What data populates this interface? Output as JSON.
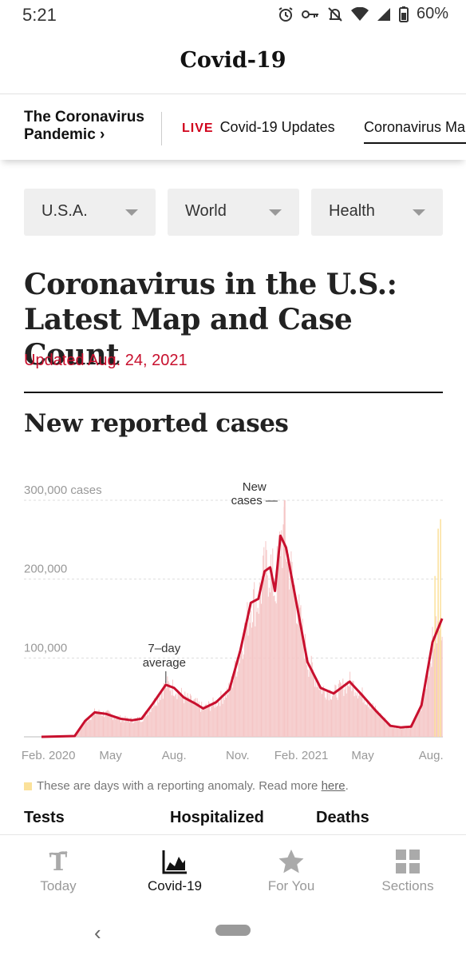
{
  "status": {
    "time": "5:21",
    "battery": "60%"
  },
  "appbar": {
    "title": "Covid-19"
  },
  "subnav": {
    "pandemic_label": "The Coronavirus Pandemic ›",
    "live_badge": "LIVE",
    "live_label": "Covid-19 Updates",
    "maps_label": "Coronavirus Maps"
  },
  "sections": [
    {
      "label": "U.S.A."
    },
    {
      "label": "World"
    },
    {
      "label": "Health"
    }
  ],
  "article": {
    "headline": "Coronavirus in the U.S.: Latest Map and Case Count",
    "updated": "Updated Aug. 24, 2021",
    "chart_heading": "New reported cases"
  },
  "chart_data": {
    "type": "area",
    "x_tick_labels": [
      "Feb. 2020",
      "May",
      "Aug.",
      "Nov.",
      "Feb. 2021",
      "May",
      "Aug."
    ],
    "y_tick_labels": [
      "300,000 cases",
      "200,000",
      "100,000"
    ],
    "ylim": [
      0,
      300000
    ],
    "series": [
      {
        "name": "7-day average",
        "x": [
          "2020-01-22",
          "2020-03-10",
          "2020-03-25",
          "2020-04-08",
          "2020-04-25",
          "2020-05-15",
          "2020-06-01",
          "2020-06-15",
          "2020-07-01",
          "2020-07-20",
          "2020-08-01",
          "2020-08-15",
          "2020-09-01",
          "2020-09-12",
          "2020-10-01",
          "2020-10-20",
          "2020-11-05",
          "2020-11-20",
          "2020-12-01",
          "2020-12-10",
          "2020-12-18",
          "2020-12-25",
          "2021-01-02",
          "2021-01-10",
          "2021-01-25",
          "2021-02-10",
          "2021-03-01",
          "2021-03-20",
          "2021-04-12",
          "2021-05-01",
          "2021-05-20",
          "2021-06-10",
          "2021-06-25",
          "2021-07-10",
          "2021-07-25",
          "2021-08-10",
          "2021-08-24"
        ],
        "y": [
          0,
          1000,
          20000,
          31000,
          29000,
          23000,
          21000,
          23000,
          42000,
          66000,
          62000,
          50000,
          42000,
          36000,
          44000,
          60000,
          110000,
          170000,
          175000,
          210000,
          215000,
          185000,
          255000,
          240000,
          170000,
          95000,
          62000,
          55000,
          70000,
          52000,
          33000,
          14000,
          12000,
          13000,
          40000,
          120000,
          150000
        ]
      },
      {
        "name": "New cases",
        "x": [
          "2021-01-08"
        ],
        "y": [
          300000
        ]
      }
    ],
    "annotations": [
      {
        "text": "New cases",
        "lines": [
          "New",
          "cases —"
        ]
      },
      {
        "text": "7–day average",
        "lines": [
          "7–day",
          "average"
        ]
      }
    ],
    "colors": {
      "line": "#c8102e",
      "bars": "#f5c6c6",
      "grid": "#dddddd",
      "anomaly": "#fbe19a"
    }
  },
  "legend": {
    "text": "These are days with a reporting anomaly. Read more ",
    "link": "here",
    "after": "."
  },
  "stats": {
    "tests": "Tests",
    "hospitalized": "Hospitalized",
    "deaths": "Deaths"
  },
  "bottom_nav": [
    {
      "label": "Today",
      "icon": "nyt-logo-icon",
      "active": false
    },
    {
      "label": "Covid-19",
      "icon": "area-chart-icon",
      "active": true
    },
    {
      "label": "For You",
      "icon": "star-icon",
      "active": false
    },
    {
      "label": "Sections",
      "icon": "grid-icon",
      "active": false
    }
  ],
  "system_nav": {
    "back": "‹"
  }
}
